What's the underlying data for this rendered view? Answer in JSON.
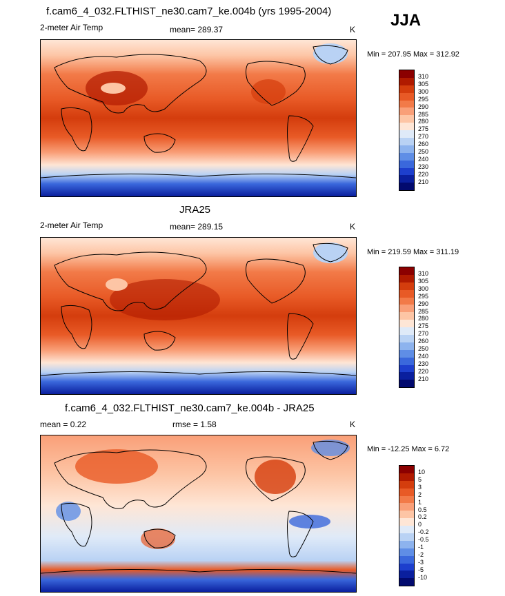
{
  "season": "JJA",
  "panels": [
    {
      "title": "f.cam6_4_032.FLTHIST_ne30.cam7_ke.004b (yrs 1995-2004)",
      "left_label": "2-meter Air Temp",
      "center_label": "mean= 289.37",
      "right_label": "K",
      "minmax": "Min = 207.95 Max = 312.92"
    },
    {
      "title": "JRA25",
      "left_label": "2-meter Air Temp",
      "center_label": "mean= 289.15",
      "right_label": "K",
      "minmax": "Min = 219.59 Max = 311.19"
    },
    {
      "title": "f.cam6_4_032.FLTHIST_ne30.cam7_ke.004b - JRA25",
      "left_label": "mean =   0.22",
      "center_label": "rmse =   1.58",
      "right_label": "K",
      "minmax": "Min = -12.25 Max =   6.72"
    }
  ],
  "colorbar_abs": {
    "labels": [
      "310",
      "305",
      "300",
      "295",
      "290",
      "285",
      "280",
      "275",
      "270",
      "260",
      "250",
      "240",
      "230",
      "220",
      "210"
    ],
    "colors": [
      "#8b0000",
      "#b01a00",
      "#d43d0d",
      "#e85a26",
      "#f27a48",
      "#f99f78",
      "#fdc5a5",
      "#fee6d6",
      "#dfeaf8",
      "#b9d2f4",
      "#8db3ee",
      "#5f8ee6",
      "#3a68dc",
      "#1d3fcd",
      "#0a1f9e",
      "#020a6e"
    ]
  },
  "colorbar_diff": {
    "labels": [
      "10",
      "5",
      "3",
      "2",
      "1",
      "0.5",
      "0.2",
      "0",
      "-0.2",
      "-0.5",
      "-1",
      "-2",
      "-3",
      "-5",
      "-10"
    ],
    "colors": [
      "#8b0000",
      "#b01a00",
      "#d43d0d",
      "#e85a26",
      "#f27a48",
      "#f99f78",
      "#fdc5a5",
      "#fee6d6",
      "#dfeaf8",
      "#b9d2f4",
      "#8db3ee",
      "#5f8ee6",
      "#3a68dc",
      "#1d3fcd",
      "#0a1f9e",
      "#020a6e"
    ]
  }
}
